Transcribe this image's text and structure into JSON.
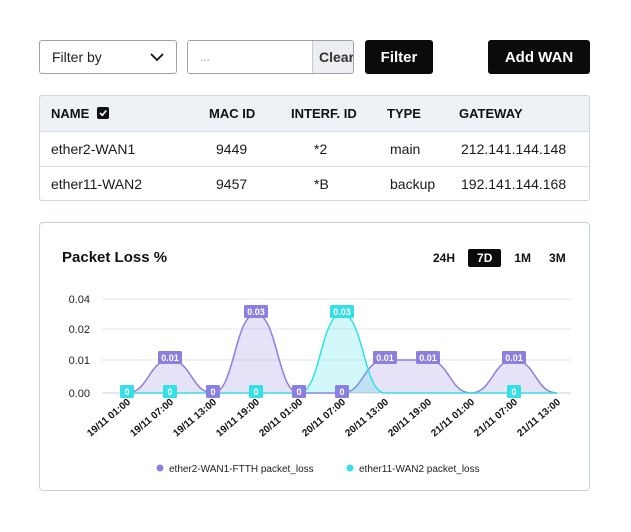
{
  "toolbar": {
    "filter_by": "Filter by",
    "search_placeholder": "...",
    "clear_label": "Clear",
    "filter_label": "Filter",
    "add_wan_label": "Add WAN"
  },
  "table": {
    "headers": [
      "NAME",
      "MAC ID",
      "INTERF. ID",
      "TYPE",
      "GATEWAY"
    ],
    "rows": [
      [
        "ether2-WAN1",
        "9449",
        "*2",
        "main",
        "212.141.144.148"
      ],
      [
        "ether11-WAN2",
        "9457",
        "*B",
        "backup",
        "192.141.144.168"
      ]
    ]
  },
  "panel": {
    "title": "Packet Loss %",
    "ranges": [
      "24H",
      "7D",
      "1M",
      "3M"
    ],
    "active_range": "7D"
  },
  "colors": {
    "series1": "#8b7fe0",
    "series2": "#34e0e6",
    "grid": "#e3e6ee"
  },
  "chart_data": {
    "type": "area",
    "x": [
      "19/11 01:00",
      "19/11 07:00",
      "19/11 13:00",
      "19/11 19:00",
      "20/11 01:00",
      "20/11 07:00",
      "20/11 13:00",
      "20/11 19:00",
      "21/11 01:00",
      "21/11 07:00",
      "21/11 13:00"
    ],
    "yticks": [
      "0.04",
      "0.02",
      "0.01",
      "0.00"
    ],
    "series": [
      {
        "name": "ether2-WAN1-FTTH packet_loss",
        "values": [
          0,
          0.01,
          0,
          0.03,
          0,
          0,
          0.01,
          0.01,
          0,
          0.01,
          0
        ],
        "labels": [
          "",
          "0.01",
          "0",
          "0.03",
          "0",
          "0",
          "0.01",
          "0.01",
          "",
          "0.01",
          ""
        ]
      },
      {
        "name": "ether11-WAN2 packet_loss",
        "values": [
          0,
          0,
          0,
          0,
          0,
          0.03,
          0,
          0,
          0,
          0,
          0
        ],
        "labels": [
          "0",
          "0",
          "",
          "0",
          "",
          "0.03",
          "",
          "",
          "",
          "0",
          ""
        ]
      }
    ]
  }
}
